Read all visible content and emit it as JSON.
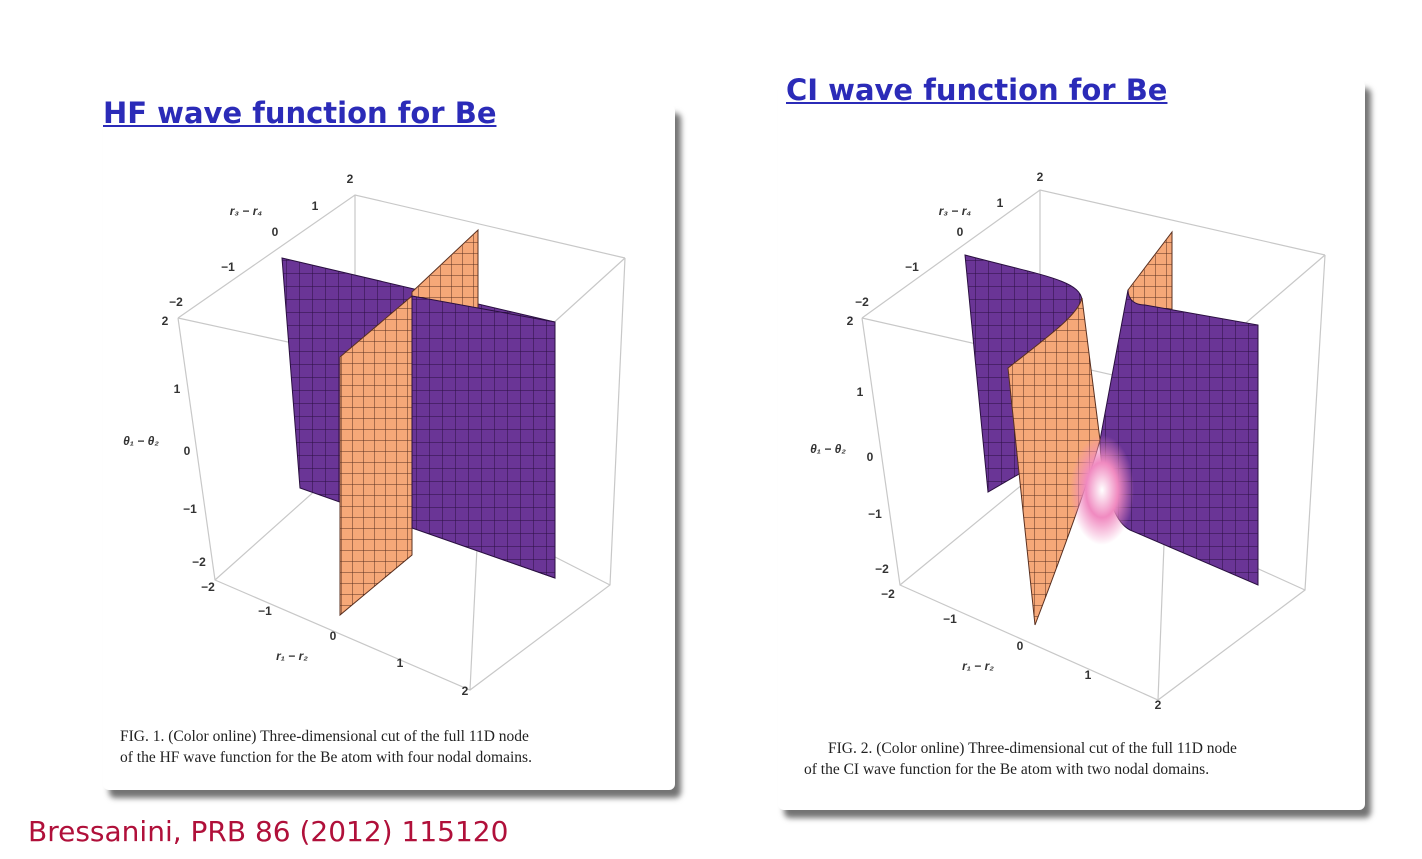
{
  "panels": [
    {
      "title": "HF wave function for Be",
      "figure": {
        "axes": {
          "depth": {
            "label": "r₃ − r₄",
            "ticks": [
              "2",
              "1",
              "0",
              "−1",
              "−2"
            ]
          },
          "vertical": {
            "label": "θ₁ − θ₂",
            "ticks": [
              "2",
              "1",
              "0",
              "−1",
              "−2"
            ]
          },
          "horizontal": {
            "label": "r₁ − r₂",
            "ticks": [
              "−2",
              "−1",
              "0",
              "1",
              "2"
            ]
          }
        }
      },
      "caption": [
        "FIG. 1. (Color online) Three-dimensional cut of the full 11D node",
        "of the HF wave function for the Be atom with four nodal domains."
      ]
    },
    {
      "title": "CI wave function for Be",
      "figure": {
        "axes": {
          "depth": {
            "label": "r₃ − r₄",
            "ticks": [
              "2",
              "1",
              "0",
              "−1",
              "−2"
            ]
          },
          "vertical": {
            "label": "θ₁ − θ₂",
            "ticks": [
              "2",
              "1",
              "0",
              "−1",
              "−2"
            ]
          },
          "horizontal": {
            "label": "r₁ − r₂",
            "ticks": [
              "−2",
              "−1",
              "0",
              "1",
              "2"
            ]
          }
        }
      },
      "caption": [
        "FIG. 2. (Color online) Three-dimensional cut of the full 11D node",
        "of the CI wave function for the Be atom with two nodal domains."
      ]
    }
  ],
  "citation": "Bressanini, PRB 86 (2012) 115120"
}
